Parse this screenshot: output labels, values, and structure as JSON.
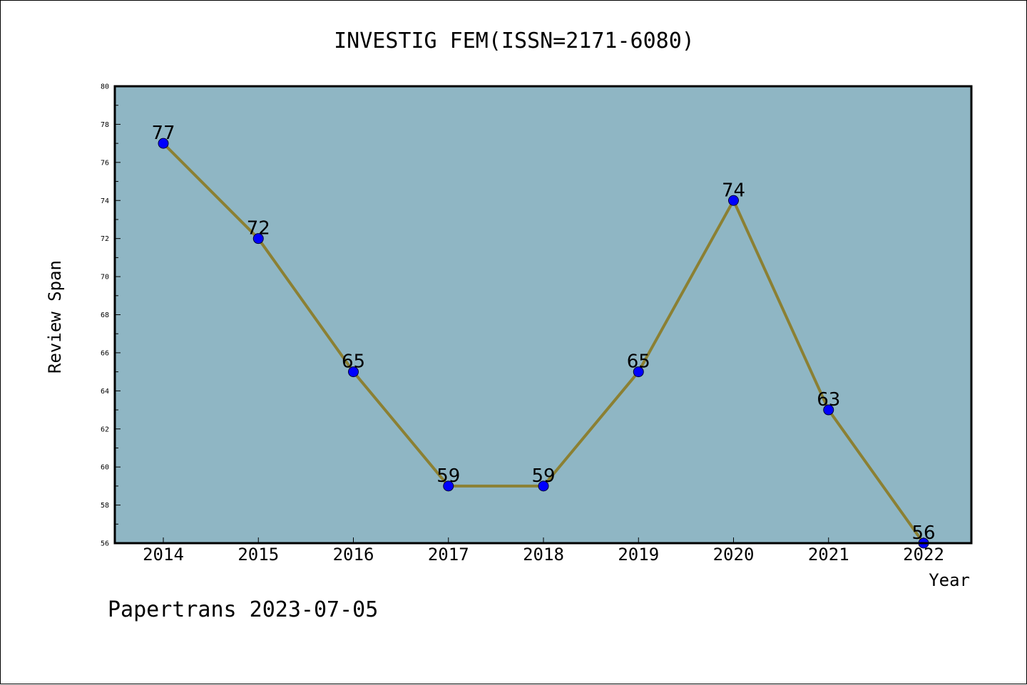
{
  "chart_data": {
    "type": "line",
    "title": "INVESTIG FEM(ISSN=2171-6080)",
    "xlabel": "Year",
    "ylabel": "Review Span",
    "categories": [
      "2014",
      "2015",
      "2016",
      "2017",
      "2018",
      "2019",
      "2020",
      "2021",
      "2022"
    ],
    "values": [
      77,
      72,
      65,
      59,
      59,
      65,
      74,
      63,
      56
    ],
    "data_labels": [
      "77",
      "72",
      "65",
      "59",
      "59",
      "65",
      "74",
      "63",
      "56"
    ],
    "ylim": [
      56,
      80
    ],
    "yticks": [
      "56",
      "58",
      "60",
      "62",
      "64",
      "66",
      "68",
      "70",
      "72",
      "74",
      "76",
      "78",
      "80"
    ],
    "grid": false,
    "legend": "none",
    "colors": {
      "plot_background": "#8fb6c4",
      "line": "#8b8033",
      "marker": "#0000ff"
    }
  },
  "footer": {
    "text": "Papertrans 2023-07-05"
  }
}
